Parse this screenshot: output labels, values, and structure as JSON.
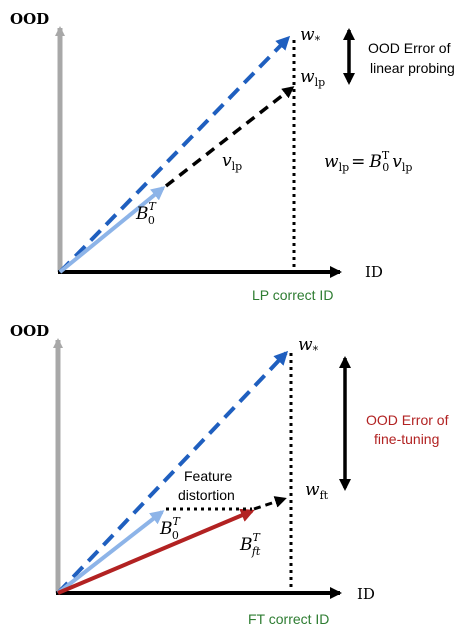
{
  "colors": {
    "axis_gray": "#a8a8a8",
    "axis_black": "#000000",
    "dash_blue": "#1f5fbf",
    "light_blue": "#8db4e8",
    "red": "#b22222",
    "green": "#2e7d32"
  },
  "top_panel": {
    "y_axis_label": "OOD",
    "x_axis_label": "ID",
    "w_star_label": "w",
    "w_star_sub": "*",
    "w_lp_label": "w",
    "w_lp_sub": "lp",
    "v_lp_label": "v",
    "v_lp_sub": "lp",
    "b0_label": "B",
    "b0_sub": "0",
    "b0_sup": "T",
    "error_label_line1": "OOD Error of",
    "error_label_line2": "linear probing",
    "equation": {
      "lhs": "w",
      "lhs_sub": "lp",
      "eq": "=",
      "b": "B",
      "b_sub": "0",
      "b_sup": "T",
      "v": "v",
      "v_sub": "lp"
    },
    "correct_id_label": "LP correct ID"
  },
  "bottom_panel": {
    "y_axis_label": "OOD",
    "x_axis_label": "ID",
    "w_star_label": "w",
    "w_star_sub": "*",
    "w_ft_label": "w",
    "w_ft_sub": "ft",
    "b0_label": "B",
    "b0_sub": "0",
    "b0_sup": "T",
    "bft_label": "B",
    "bft_sub": "ft",
    "bft_sup": "T",
    "feature_distortion_line1": "Feature",
    "feature_distortion_line2": "distortion",
    "error_label_line1": "OOD Error of",
    "error_label_line2": "fine-tuning",
    "correct_id_label": "FT correct ID"
  }
}
